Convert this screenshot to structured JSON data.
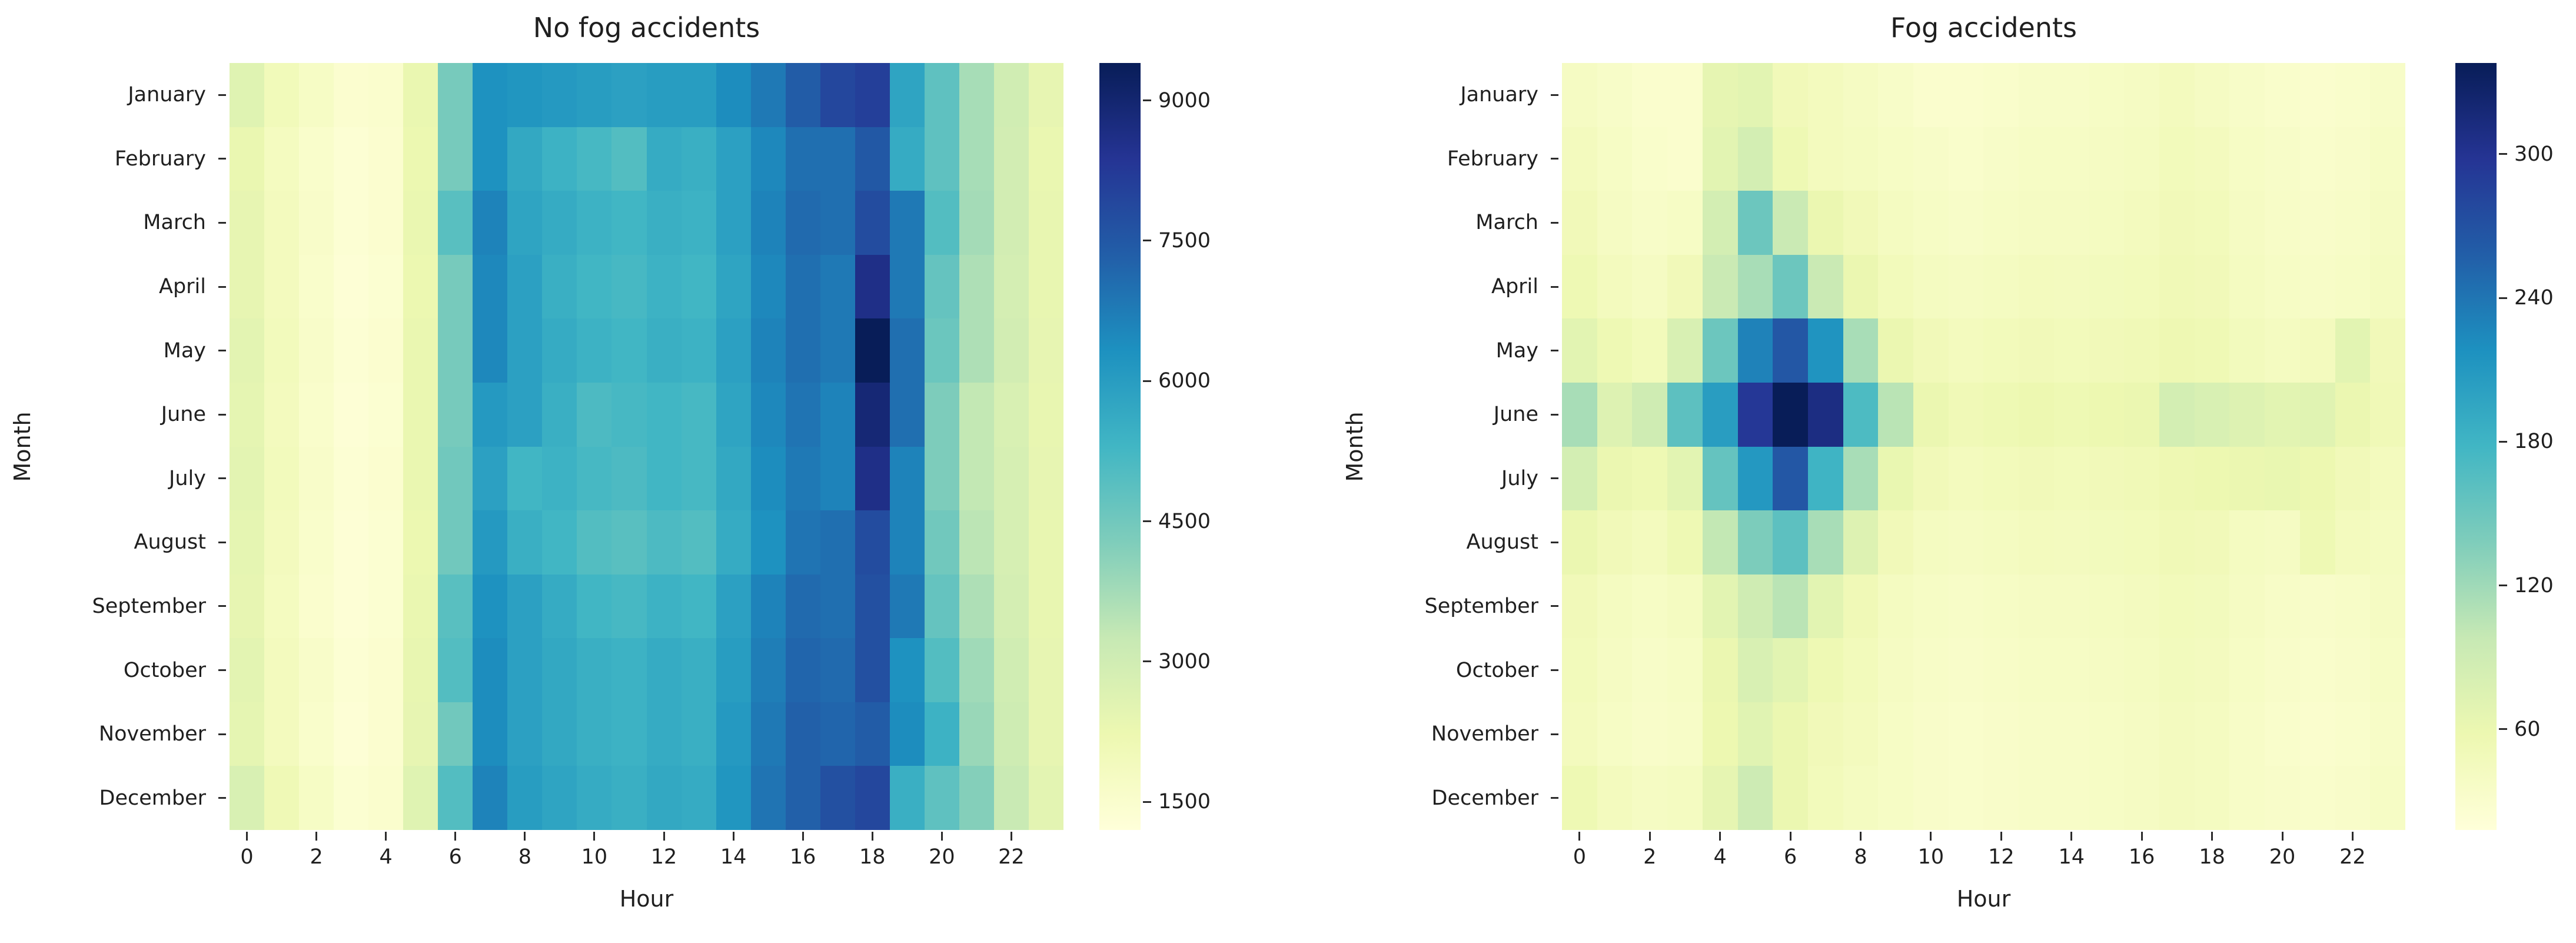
{
  "figure": {
    "background": "#ffffff",
    "text_color": "#1f1f1f"
  },
  "colormap": {
    "name": "YlGnBu",
    "stops": [
      "#ffffd9",
      "#edf8b1",
      "#c7e9b4",
      "#7fcdbb",
      "#41b6c4",
      "#1d91c0",
      "#225ea8",
      "#253494",
      "#081d58"
    ]
  },
  "chart_data": [
    {
      "type": "heatmap",
      "title": "No fog accidents",
      "xlabel": "Hour",
      "ylabel": "Month",
      "legend_position": "right-colorbar",
      "grid": false,
      "months": [
        "January",
        "February",
        "March",
        "April",
        "May",
        "June",
        "July",
        "August",
        "September",
        "October",
        "November",
        "December"
      ],
      "hours": [
        0,
        1,
        2,
        3,
        4,
        5,
        6,
        7,
        8,
        9,
        10,
        11,
        12,
        13,
        14,
        15,
        16,
        17,
        18,
        19,
        20,
        21,
        22,
        23
      ],
      "x_tick_labels": [
        0,
        2,
        4,
        6,
        8,
        10,
        12,
        14,
        16,
        18,
        20,
        22
      ],
      "vmin": 1200,
      "vmax": 9400,
      "colorbar_ticks": [
        1500,
        3000,
        4500,
        6000,
        7500,
        9000
      ],
      "values": [
        [
          2600,
          2000,
          1700,
          1450,
          1500,
          2300,
          4400,
          6300,
          6200,
          6100,
          6000,
          5900,
          6000,
          6000,
          6400,
          6800,
          7400,
          7900,
          8100,
          5800,
          4800,
          3700,
          3000,
          2400
        ],
        [
          2300,
          1850,
          1550,
          1350,
          1450,
          2250,
          4400,
          6300,
          5700,
          5400,
          5200,
          5000,
          5600,
          5500,
          5900,
          6500,
          7000,
          7000,
          7500,
          5600,
          4800,
          3700,
          2950,
          2300
        ],
        [
          2400,
          1900,
          1600,
          1350,
          1450,
          2300,
          4900,
          6600,
          5800,
          5600,
          5400,
          5300,
          5500,
          5400,
          5900,
          6600,
          7100,
          7000,
          7800,
          6800,
          5000,
          3750,
          2950,
          2350
        ],
        [
          2400,
          1900,
          1550,
          1300,
          1400,
          2250,
          4400,
          6500,
          5900,
          5500,
          5300,
          5200,
          5400,
          5300,
          5800,
          6500,
          7000,
          6800,
          8600,
          6800,
          4700,
          3600,
          2900,
          2350
        ],
        [
          2500,
          1950,
          1600,
          1350,
          1450,
          2300,
          4400,
          6500,
          5900,
          5600,
          5400,
          5300,
          5500,
          5400,
          5900,
          6600,
          7000,
          6800,
          9400,
          7000,
          4600,
          3600,
          2950,
          2400
        ],
        [
          2450,
          1900,
          1550,
          1300,
          1400,
          2300,
          4400,
          6100,
          5900,
          5500,
          5100,
          5200,
          5300,
          5200,
          5800,
          6500,
          6900,
          6600,
          8900,
          7000,
          4300,
          3300,
          2800,
          2350
        ],
        [
          2500,
          1950,
          1600,
          1350,
          1450,
          2300,
          4500,
          5900,
          5300,
          5400,
          5200,
          5100,
          5300,
          5200,
          5700,
          6400,
          6800,
          6600,
          8600,
          6600,
          4300,
          3300,
          2850,
          2400
        ],
        [
          2450,
          1900,
          1550,
          1300,
          1400,
          2250,
          4500,
          6100,
          5500,
          5300,
          5000,
          4900,
          5100,
          5000,
          5600,
          6300,
          6900,
          7000,
          7800,
          6600,
          4500,
          3400,
          2850,
          2350
        ],
        [
          2400,
          1850,
          1500,
          1300,
          1400,
          2300,
          4900,
          6300,
          5900,
          5600,
          5300,
          5200,
          5400,
          5300,
          5900,
          6600,
          7100,
          7000,
          7700,
          6800,
          4700,
          3600,
          2900,
          2350
        ],
        [
          2500,
          1900,
          1600,
          1350,
          1450,
          2350,
          5000,
          6400,
          5900,
          5700,
          5500,
          5400,
          5600,
          5500,
          6000,
          6700,
          7200,
          7100,
          7700,
          6300,
          5000,
          3800,
          3000,
          2400
        ],
        [
          2450,
          1900,
          1550,
          1300,
          1450,
          2400,
          4500,
          6400,
          5900,
          5700,
          5500,
          5400,
          5600,
          5500,
          6100,
          6800,
          7300,
          7200,
          7400,
          6400,
          5400,
          3900,
          3050,
          2400
        ],
        [
          2800,
          2100,
          1700,
          1400,
          1500,
          2600,
          5000,
          6600,
          6000,
          5800,
          5600,
          5500,
          5700,
          5600,
          6200,
          6900,
          7300,
          7700,
          7900,
          5500,
          4800,
          4200,
          3200,
          2500
        ]
      ]
    },
    {
      "type": "heatmap",
      "title": "Fog accidents",
      "xlabel": "Hour",
      "ylabel": "Month",
      "legend_position": "right-colorbar",
      "grid": false,
      "months": [
        "January",
        "February",
        "March",
        "April",
        "May",
        "June",
        "July",
        "August",
        "September",
        "October",
        "November",
        "December"
      ],
      "hours": [
        0,
        1,
        2,
        3,
        4,
        5,
        6,
        7,
        8,
        9,
        10,
        11,
        12,
        13,
        14,
        15,
        16,
        17,
        18,
        19,
        20,
        21,
        22,
        23
      ],
      "x_tick_labels": [
        0,
        2,
        4,
        6,
        8,
        10,
        12,
        14,
        16,
        18,
        20,
        22
      ],
      "vmin": 18,
      "vmax": 338,
      "colorbar_ticks": [
        60,
        120,
        180,
        240,
        300
      ],
      "values": [
        [
          40,
          35,
          30,
          30,
          65,
          70,
          50,
          45,
          40,
          35,
          30,
          30,
          32,
          35,
          35,
          38,
          40,
          45,
          40,
          35,
          32,
          30,
          32,
          35
        ],
        [
          45,
          38,
          32,
          30,
          70,
          85,
          55,
          45,
          42,
          38,
          35,
          32,
          35,
          38,
          38,
          40,
          42,
          48,
          45,
          38,
          35,
          32,
          34,
          38
        ],
        [
          50,
          40,
          35,
          38,
          85,
          150,
          95,
          60,
          50,
          42,
          38,
          35,
          38,
          40,
          40,
          42,
          45,
          50,
          48,
          40,
          36,
          34,
          36,
          40
        ],
        [
          55,
          45,
          40,
          50,
          95,
          115,
          150,
          95,
          60,
          48,
          42,
          40,
          42,
          45,
          44,
          46,
          48,
          52,
          50,
          42,
          38,
          36,
          38,
          42
        ],
        [
          70,
          55,
          48,
          80,
          150,
          230,
          265,
          215,
          115,
          60,
          50,
          45,
          48,
          50,
          48,
          50,
          52,
          56,
          54,
          46,
          42,
          45,
          70,
          50
        ],
        [
          115,
          75,
          90,
          160,
          205,
          295,
          338,
          310,
          170,
          105,
          60,
          52,
          55,
          58,
          55,
          58,
          60,
          85,
          80,
          75,
          70,
          72,
          60,
          52
        ],
        [
          85,
          60,
          55,
          70,
          155,
          210,
          265,
          180,
          115,
          62,
          50,
          45,
          48,
          50,
          48,
          50,
          52,
          56,
          58,
          60,
          62,
          58,
          50,
          45
        ],
        [
          60,
          50,
          45,
          55,
          100,
          140,
          160,
          115,
          75,
          50,
          42,
          40,
          42,
          45,
          44,
          46,
          48,
          52,
          50,
          42,
          40,
          55,
          45,
          42
        ],
        [
          50,
          42,
          38,
          42,
          70,
          90,
          105,
          70,
          52,
          42,
          38,
          36,
          38,
          40,
          40,
          42,
          44,
          48,
          46,
          40,
          36,
          34,
          36,
          40
        ],
        [
          48,
          40,
          35,
          38,
          60,
          80,
          70,
          55,
          48,
          40,
          36,
          34,
          36,
          38,
          38,
          40,
          42,
          46,
          44,
          38,
          34,
          32,
          34,
          38
        ],
        [
          45,
          38,
          34,
          36,
          58,
          72,
          60,
          50,
          45,
          38,
          34,
          32,
          34,
          36,
          36,
          38,
          40,
          44,
          42,
          36,
          32,
          30,
          32,
          36
        ],
        [
          55,
          45,
          40,
          42,
          65,
          92,
          60,
          48,
          42,
          38,
          34,
          32,
          34,
          36,
          36,
          38,
          40,
          44,
          42,
          36,
          34,
          32,
          34,
          38
        ]
      ]
    }
  ]
}
